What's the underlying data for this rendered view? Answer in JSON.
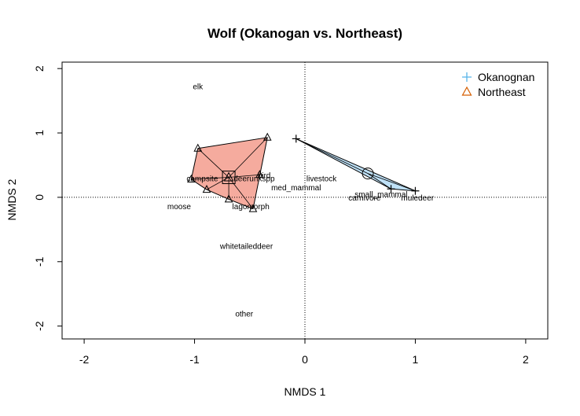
{
  "chart_data": {
    "type": "scatter",
    "title": "Wolf (Okanogan vs. Northeast)",
    "xlabel": "NMDS 1",
    "ylabel": "NMDS 2",
    "xlim": [
      -2.2,
      2.2
    ],
    "ylim": [
      -2.2,
      2.1
    ],
    "xticks": [
      -2,
      -1,
      0,
      1,
      2
    ],
    "yticks": [
      -2,
      -1,
      0,
      1,
      2
    ],
    "tick_labels_x": [
      "-2",
      "-1",
      "0",
      "1",
      "2"
    ],
    "tick_labels_y": [
      "-2",
      "-1",
      "0",
      "1",
      "2"
    ],
    "reference_lines": {
      "x": 0,
      "y": 0,
      "style": "dotted"
    },
    "legend": {
      "position": "top-right"
    },
    "colors": {
      "okanogan": "#56B4E9",
      "northeast": "#D55E00"
    },
    "series": [
      {
        "name": "Okanognan",
        "marker": "plus",
        "hull_fill": "#BFE1F7",
        "points": [
          [
            -0.08,
            0.91
          ],
          [
            0.78,
            0.13
          ],
          [
            1.0,
            0.1
          ]
        ],
        "centroid": [
          0.57,
          0.37
        ]
      },
      {
        "name": "Northeast",
        "marker": "triangle",
        "hull_fill": "#F5AB9E",
        "points": [
          [
            -0.97,
            0.76
          ],
          [
            -0.34,
            0.93
          ],
          [
            -1.03,
            0.28
          ],
          [
            -0.89,
            0.12
          ],
          [
            -0.69,
            -0.03
          ],
          [
            -0.47,
            -0.18
          ],
          [
            -0.41,
            0.35
          ]
        ],
        "centroid": [
          -0.69,
          0.31
        ]
      }
    ],
    "species": [
      {
        "label": "elk",
        "x": -0.97,
        "y": 1.72
      },
      {
        "label": "campsite",
        "x": -0.93,
        "y": 0.29
      },
      {
        "label": "bird",
        "x": -0.37,
        "y": 0.34
      },
      {
        "label": "deerunkspp",
        "x": -0.46,
        "y": 0.29
      },
      {
        "label": "livestock",
        "x": 0.15,
        "y": 0.29
      },
      {
        "label": "med_mammal",
        "x": -0.08,
        "y": 0.15
      },
      {
        "label": "small_mammal",
        "x": 0.69,
        "y": 0.05
      },
      {
        "label": "carnivore",
        "x": 0.54,
        "y": -0.01
      },
      {
        "label": "muledeer",
        "x": 1.02,
        "y": -0.01
      },
      {
        "label": "moose",
        "x": -1.14,
        "y": -0.14
      },
      {
        "label": "lagomorph",
        "x": -0.49,
        "y": -0.14
      },
      {
        "label": "whitetaileddeer",
        "x": -0.53,
        "y": -0.76
      },
      {
        "label": "other",
        "x": -0.55,
        "y": -1.81
      }
    ]
  }
}
